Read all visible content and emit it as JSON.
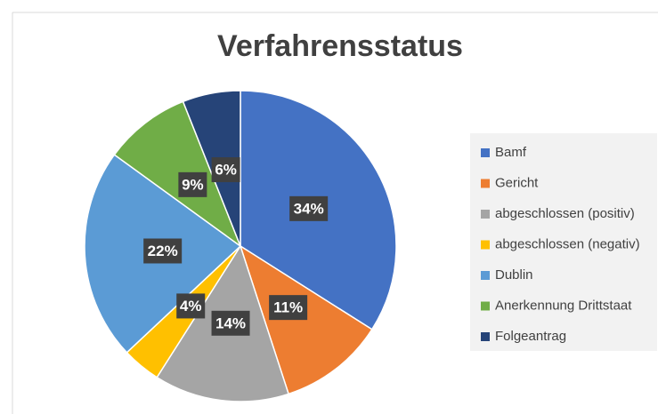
{
  "chart_data": {
    "type": "pie",
    "title": "Verfahrensstatus",
    "categories": [
      "Bamf",
      "Gericht",
      "abgeschlossen (positiv)",
      "abgeschlossen (negativ)",
      "Dublin",
      "Anerkennung Drittstaat",
      "Folgeantrag"
    ],
    "values": [
      34,
      11,
      14,
      4,
      22,
      9,
      6
    ],
    "value_labels": [
      "34%",
      "11%",
      "14%",
      "4%",
      "22%",
      "9%",
      "6%"
    ],
    "colors": [
      "#4472c4",
      "#ed7d31",
      "#a5a5a5",
      "#ffc000",
      "#5b9bd5",
      "#70ad47",
      "#264478"
    ],
    "legend": "right"
  }
}
